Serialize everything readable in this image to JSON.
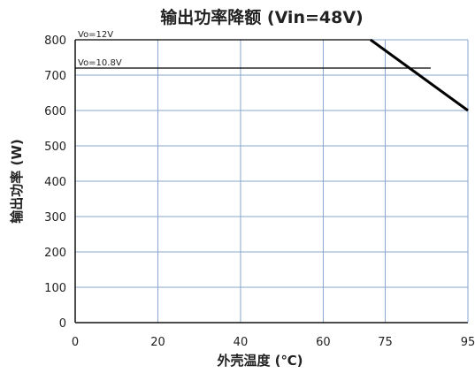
{
  "chart_data": {
    "type": "line",
    "title": "输出功率降额 (Vin=48V)",
    "xlabel": "外壳温度 (℃)",
    "ylabel": "输出功率 (W)",
    "xlim": [
      0,
      95
    ],
    "ylim": [
      0,
      800
    ],
    "x_ticks": [
      0,
      20,
      40,
      60,
      75,
      95
    ],
    "y_ticks": [
      0,
      100,
      200,
      300,
      400,
      500,
      600,
      700,
      800
    ],
    "grid": "horizontal and vertical",
    "legend": "none",
    "series": [
      {
        "name": "Vo=12V",
        "points": [
          [
            0,
            800
          ],
          [
            80,
            800
          ],
          [
            95,
            600
          ]
        ]
      },
      {
        "name": "Vo=10.8V",
        "points": [
          [
            0,
            720
          ],
          [
            86,
            720
          ]
        ]
      }
    ],
    "colors": {
      "grid": "#8aa6cf",
      "axis": "#111111",
      "series_12v": "#000000",
      "series_108v": "#000000"
    }
  }
}
